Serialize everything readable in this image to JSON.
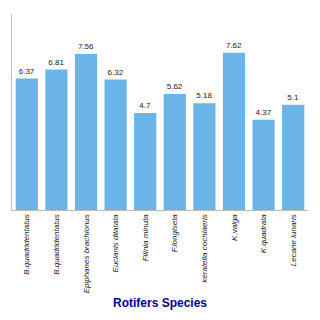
{
  "chart_data": {
    "type": "bar",
    "xlabel": "Rotifers Species",
    "categories": [
      "B.quadridentatus",
      "B.quadridentatus",
      "Epiphanes brachionus",
      "Euclanis dilatata",
      "Filinia minuta",
      "F.longiseta",
      "keratella cochlaeris",
      "K.valga",
      "K.quadrata",
      "Lecane lunaris"
    ],
    "values": [
      6.37,
      6.81,
      7.56,
      6.32,
      4.7,
      5.62,
      5.18,
      7.62,
      4.37,
      5.1
    ],
    "color": "#6ab4e8",
    "ylim": [
      0,
      9.5
    ],
    "data_labels": true,
    "tick_labels": "x",
    "grid": false
  }
}
